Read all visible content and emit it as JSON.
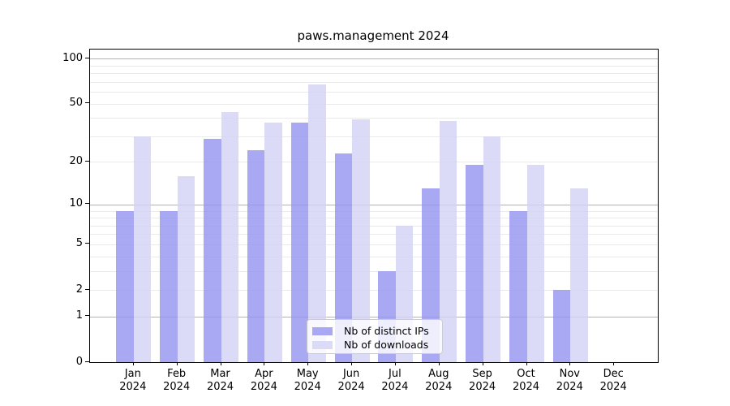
{
  "title": "paws.management 2024",
  "axes": {
    "y_tick_labels": [
      "100",
      "50",
      "20",
      "10",
      "5",
      "2",
      "1",
      "0"
    ],
    "x_year_line": "2024"
  },
  "legend": {
    "items": [
      {
        "label": "Nb of distinct IPs",
        "swatch_color": "#a9a9f3"
      },
      {
        "label": "Nb of downloads",
        "swatch_color": "#dbdbf8"
      }
    ]
  },
  "chart_data": {
    "type": "bar",
    "title": "paws.management 2024",
    "categories": [
      "Jan",
      "Feb",
      "Mar",
      "Apr",
      "May",
      "Jun",
      "Jul",
      "Aug",
      "Sep",
      "Oct",
      "Nov",
      "Dec"
    ],
    "category_sublabel": "2024",
    "series": [
      {
        "name": "Nb of distinct IPs",
        "color_rgba": "rgba(148,148,240,0.8)",
        "color_flat": "#a9a9f3",
        "values": [
          9,
          9,
          29,
          24,
          37,
          23,
          3,
          13,
          19,
          9,
          2,
          0
        ]
      },
      {
        "name": "Nb of downloads",
        "color_rgba": "rgba(210,210,246,0.8)",
        "color_flat": "#dbdbf8",
        "values": [
          30,
          16,
          44,
          37,
          67,
          39,
          7,
          38,
          30,
          19,
          13,
          0
        ]
      }
    ],
    "xlabel": "",
    "ylabel": "",
    "yscale": "log1p",
    "y_ticks": [
      100,
      50,
      20,
      10,
      5,
      2,
      1,
      0
    ],
    "ylim": [
      0,
      116
    ],
    "grid_major": [
      1,
      10,
      100
    ],
    "grid_minor": [
      2,
      3,
      4,
      5,
      6,
      7,
      8,
      9,
      20,
      30,
      40,
      50,
      60,
      70,
      80,
      90
    ],
    "grid": "on",
    "legend_position": "lower center"
  }
}
